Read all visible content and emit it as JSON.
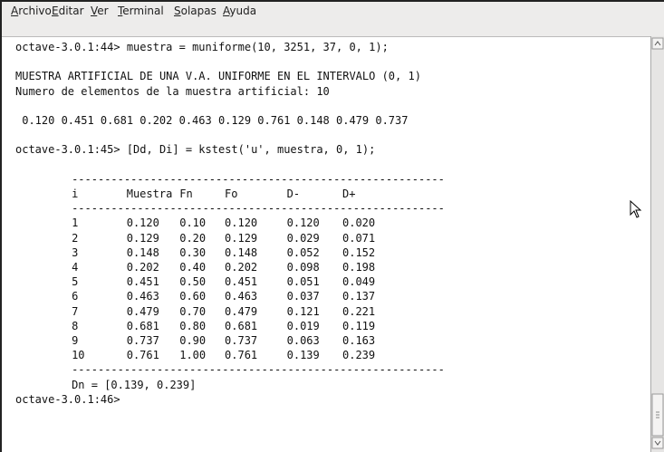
{
  "menu": [
    "Archivo",
    "Editar",
    "Ver",
    "Terminal",
    "Solapas",
    "Ayuda"
  ],
  "terminal": {
    "prompt1": "octave-3.0.1:44> muestra = muniforme(10, 3251, 37, 0, 1);",
    "heading": "MUESTRA ARTIFICIAL DE UNA V.A. UNIFORME EN EL INTERVALO (0, 1)",
    "count_line": "Numero de elementos de la muestra artificial: 10",
    "sample_values": "0.120 0.451 0.681 0.202 0.463 0.129 0.761 0.148 0.479 0.737",
    "prompt2": "octave-3.0.1:45> [Dd, Di] = kstest('u', muestra, 0, 1);",
    "table": {
      "rule": "---------------------------------------------------------",
      "headers": [
        "i",
        "Muestra",
        "Fn",
        "Fo",
        "D-",
        "D+"
      ],
      "rows": [
        [
          "1",
          "0.120",
          "0.10",
          "0.120",
          "0.120",
          "0.020"
        ],
        [
          "2",
          "0.129",
          "0.20",
          "0.129",
          "0.029",
          "0.071"
        ],
        [
          "3",
          "0.148",
          "0.30",
          "0.148",
          "0.052",
          "0.152"
        ],
        [
          "4",
          "0.202",
          "0.40",
          "0.202",
          "0.098",
          "0.198"
        ],
        [
          "5",
          "0.451",
          "0.50",
          "0.451",
          "0.051",
          "0.049"
        ],
        [
          "6",
          "0.463",
          "0.60",
          "0.463",
          "0.037",
          "0.137"
        ],
        [
          "7",
          "0.479",
          "0.70",
          "0.479",
          "0.121",
          "0.221"
        ],
        [
          "8",
          "0.681",
          "0.80",
          "0.681",
          "0.019",
          "0.119"
        ],
        [
          "9",
          "0.737",
          "0.90",
          "0.737",
          "0.063",
          "0.163"
        ],
        [
          "10",
          "0.761",
          "1.00",
          "0.761",
          "0.139",
          "0.239"
        ]
      ],
      "summary": "Dn = [0.139, 0.239]"
    },
    "prompt3": "octave-3.0.1:46>"
  }
}
